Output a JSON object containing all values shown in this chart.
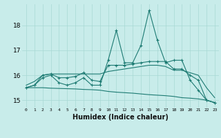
{
  "xlabel": "Humidex (Indice chaleur)",
  "x": [
    0,
    1,
    2,
    3,
    4,
    5,
    6,
    7,
    8,
    9,
    10,
    11,
    12,
    13,
    14,
    15,
    16,
    17,
    18,
    19,
    20,
    21,
    22,
    23
  ],
  "line_spiky": [
    15.5,
    15.6,
    15.9,
    16.0,
    15.7,
    15.6,
    15.7,
    15.9,
    15.6,
    15.6,
    16.6,
    17.8,
    16.5,
    16.5,
    17.2,
    18.6,
    17.4,
    16.5,
    16.6,
    16.6,
    15.8,
    15.4,
    15.0,
    14.9
  ],
  "line_rise": [
    15.5,
    15.6,
    16.0,
    16.05,
    15.9,
    15.9,
    15.95,
    16.1,
    15.8,
    15.75,
    16.4,
    16.4,
    16.4,
    16.45,
    16.5,
    16.55,
    16.55,
    16.55,
    16.25,
    16.25,
    16.0,
    15.8,
    15.0,
    14.9
  ],
  "line_flat": [
    15.6,
    15.75,
    16.0,
    16.05,
    16.05,
    16.05,
    16.05,
    16.05,
    16.05,
    16.05,
    16.15,
    16.2,
    16.25,
    16.3,
    16.35,
    16.4,
    16.4,
    16.35,
    16.2,
    16.2,
    16.1,
    16.0,
    15.5,
    15.1
  ],
  "line_decline": [
    15.5,
    15.5,
    15.5,
    15.48,
    15.47,
    15.46,
    15.45,
    15.43,
    15.42,
    15.4,
    15.35,
    15.32,
    15.3,
    15.28,
    15.25,
    15.22,
    15.2,
    15.18,
    15.15,
    15.1,
    15.08,
    15.05,
    15.0,
    14.9
  ],
  "bg_color": "#c8ecea",
  "line_color": "#1c7a72",
  "grid_color": "#a8d8d4",
  "ylim": [
    14.7,
    18.85
  ],
  "yticks": [
    15,
    16,
    17,
    18
  ],
  "xticks": [
    0,
    1,
    2,
    3,
    4,
    5,
    6,
    7,
    8,
    9,
    10,
    11,
    12,
    13,
    14,
    15,
    16,
    17,
    18,
    19,
    20,
    21,
    22,
    23
  ]
}
